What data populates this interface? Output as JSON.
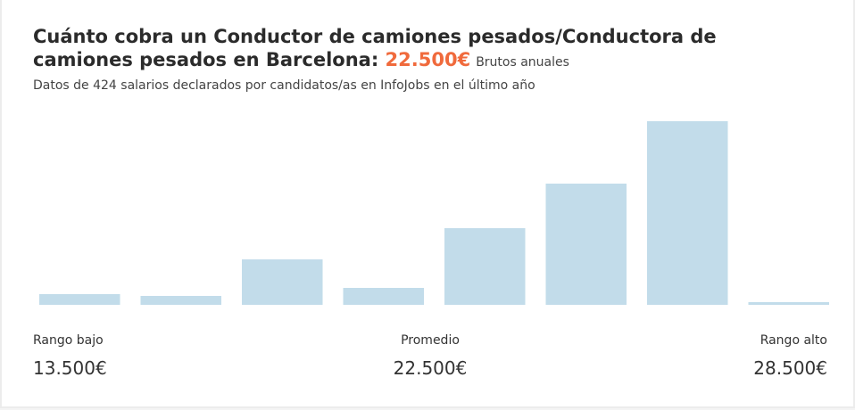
{
  "chart_data": {
    "type": "bar",
    "title": "Cuánto cobra un Conductor de camiones pesados/Conductora de camiones pesados en Barcelona:",
    "headline_value": "22.500€",
    "headline_note": "Brutos anuales",
    "subtitle": "Datos de 424 salarios declarados por candidatos/as en InfoJobs en el último año",
    "categories": [
      null,
      null,
      null,
      null,
      null,
      null,
      null,
      null
    ],
    "values": [
      12,
      10,
      51,
      19,
      86,
      136,
      206,
      3
    ],
    "color": "#c2dcea",
    "ylim": [
      0,
      210
    ],
    "summary": [
      {
        "label": "Rango bajo",
        "value": "13.500€"
      },
      {
        "label": "Promedio",
        "value": "22.500€"
      },
      {
        "label": "Rango alto",
        "value": "28.500€"
      }
    ]
  }
}
